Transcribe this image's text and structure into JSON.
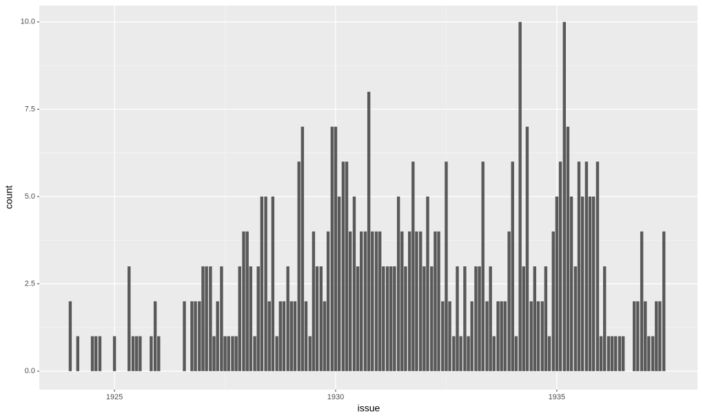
{
  "chart_data": {
    "type": "bar",
    "x_label": "issue",
    "y_label": "count",
    "color": "#595959",
    "grid": true,
    "x": [
      1924.0,
      1924.17,
      1924.5,
      1924.58,
      1924.67,
      1925.0,
      1925.33,
      1925.42,
      1925.5,
      1925.58,
      1925.83,
      1925.92,
      1926.0,
      1926.58,
      1926.75,
      1926.83,
      1926.92,
      1927.0,
      1927.08,
      1927.17,
      1927.25,
      1927.33,
      1927.42,
      1927.5,
      1927.58,
      1927.67,
      1927.75,
      1927.83,
      1927.92,
      1928.0,
      1928.08,
      1928.17,
      1928.25,
      1928.33,
      1928.42,
      1928.5,
      1928.58,
      1928.67,
      1928.75,
      1928.83,
      1928.92,
      1929.0,
      1929.08,
      1929.17,
      1929.25,
      1929.33,
      1929.42,
      1929.5,
      1929.58,
      1929.67,
      1929.75,
      1929.83,
      1929.92,
      1930.0,
      1930.08,
      1930.17,
      1930.25,
      1930.33,
      1930.42,
      1930.5,
      1930.58,
      1930.67,
      1930.75,
      1930.83,
      1930.92,
      1931.0,
      1931.08,
      1931.17,
      1931.25,
      1931.33,
      1931.42,
      1931.5,
      1931.58,
      1931.67,
      1931.75,
      1931.83,
      1931.92,
      1932.0,
      1932.08,
      1932.17,
      1932.25,
      1932.33,
      1932.42,
      1932.5,
      1932.58,
      1932.67,
      1932.75,
      1932.83,
      1932.92,
      1933.0,
      1933.08,
      1933.17,
      1933.25,
      1933.33,
      1933.42,
      1933.5,
      1933.58,
      1933.67,
      1933.75,
      1933.83,
      1933.92,
      1934.0,
      1934.08,
      1934.17,
      1934.25,
      1934.33,
      1934.42,
      1934.5,
      1934.58,
      1934.67,
      1934.75,
      1934.83,
      1934.92,
      1935.0,
      1935.08,
      1935.17,
      1935.25,
      1935.33,
      1935.42,
      1935.5,
      1935.58,
      1935.67,
      1935.75,
      1935.83,
      1935.92,
      1936.0,
      1936.08,
      1936.17,
      1936.25,
      1936.33,
      1936.42,
      1936.5,
      1936.75,
      1936.83,
      1936.92,
      1937.0,
      1937.08,
      1937.17,
      1937.25,
      1937.33,
      1937.42
    ],
    "values": [
      2,
      1,
      1,
      1,
      1,
      1,
      3,
      1,
      1,
      1,
      1,
      2,
      1,
      2,
      2,
      2,
      2,
      3,
      3,
      3,
      1,
      2,
      3,
      1,
      1,
      1,
      1,
      3,
      4,
      4,
      3,
      1,
      3,
      5,
      5,
      2,
      5,
      1,
      2,
      2,
      3,
      2,
      2,
      6,
      7,
      2,
      1,
      4,
      3,
      3,
      2,
      4,
      7,
      7,
      5,
      6,
      6,
      4,
      5,
      3,
      4,
      4,
      8,
      4,
      4,
      4,
      3,
      3,
      3,
      3,
      5,
      4,
      3,
      4,
      6,
      4,
      4,
      3,
      5,
      3,
      4,
      4,
      2,
      6,
      2,
      1,
      3,
      1,
      3,
      1,
      2,
      3,
      3,
      6,
      2,
      3,
      1,
      2,
      2,
      2,
      4,
      6,
      1,
      10,
      3,
      7,
      2,
      3,
      2,
      2,
      3,
      1,
      4,
      5,
      6,
      10,
      7,
      5,
      3,
      6,
      5,
      6,
      5,
      5,
      6,
      1,
      3,
      1,
      1,
      1,
      1,
      1,
      2,
      2,
      4,
      2,
      1,
      1,
      2,
      2,
      4
    ],
    "xlim": [
      1923.3,
      1938.18
    ],
    "xticks": [
      1925,
      1930,
      1935
    ],
    "ylim": [
      -0.53,
      10.47
    ],
    "yticks": [
      {
        "value": 0,
        "label": "0.0"
      },
      2.5,
      {
        "value": 5,
        "label": "5.0"
      },
      7.5,
      {
        "value": 10,
        "label": "10.0"
      }
    ]
  }
}
